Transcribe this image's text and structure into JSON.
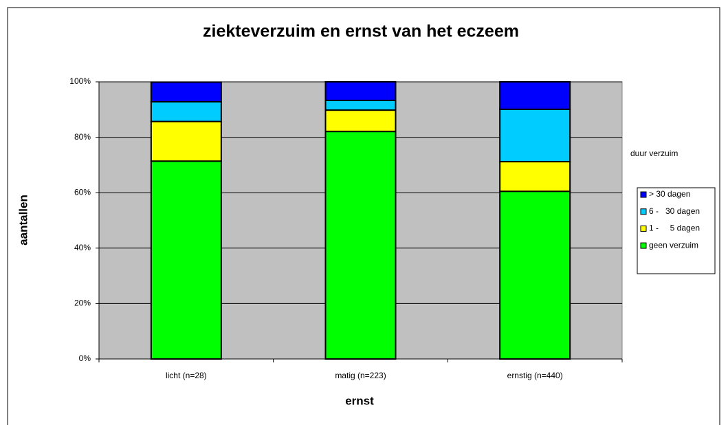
{
  "chart_data": {
    "type": "stacked_bar",
    "title": "ziekteverzuim en ernst van het eczeem",
    "x_label": "ernst",
    "y_label": "aantallen",
    "legend_title": "duur verzuim",
    "categories": [
      "licht (n=28)",
      "matig (n=223)",
      "ernstig (n=440)"
    ],
    "series": [
      {
        "name": "geen verzuim",
        "color": "#00ff00",
        "values": [
          71.4,
          82.1,
          60.5
        ]
      },
      {
        "name": "1 -     5 dagen",
        "color": "#ffff00",
        "values": [
          14.3,
          7.7,
          10.7
        ]
      },
      {
        "name": "6 -   30 dagen",
        "color": "#00ccff",
        "values": [
          7.1,
          3.5,
          18.9
        ]
      },
      {
        "name": "> 30 dagen",
        "color": "#0000ff",
        "values": [
          7.1,
          6.7,
          9.9
        ]
      }
    ],
    "ylim": [
      0,
      100
    ],
    "yticks": [
      {
        "value": 0,
        "label": "0%"
      },
      {
        "value": 20,
        "label": "20%"
      },
      {
        "value": 40,
        "label": "40%"
      },
      {
        "value": 60,
        "label": "60%"
      },
      {
        "value": 80,
        "label": "80%"
      },
      {
        "value": 100,
        "label": "100%"
      }
    ],
    "grid": true,
    "legend": "right"
  }
}
